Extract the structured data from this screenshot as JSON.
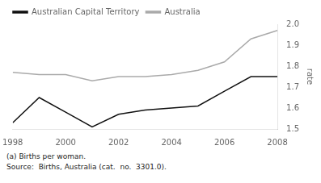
{
  "chart_data": {
    "type": "line",
    "x": [
      1998,
      1999,
      2000,
      2001,
      2002,
      2003,
      2004,
      2005,
      2006,
      2007,
      2008
    ],
    "series": [
      {
        "name": "Australian Capital Territory",
        "color": "#111111",
        "values": [
          1.53,
          1.65,
          1.58,
          1.51,
          1.57,
          1.59,
          1.6,
          1.61,
          1.68,
          1.75,
          1.75
        ]
      },
      {
        "name": "Australia",
        "color": "#aaaaaa",
        "values": [
          1.77,
          1.76,
          1.76,
          1.73,
          1.75,
          1.75,
          1.76,
          1.78,
          1.82,
          1.93,
          1.97
        ]
      }
    ],
    "xlim": [
      1998,
      2008
    ],
    "xticks": [
      1998,
      2000,
      2002,
      2004,
      2006,
      2008
    ],
    "ylim": [
      1.5,
      2.0
    ],
    "yticks": [
      1.5,
      1.6,
      1.7,
      1.8,
      1.9,
      {
        "value": 2.0,
        "label": "2.0"
      }
    ],
    "ylabel": "rate",
    "annotations": [
      "(a) Births per woman.",
      "Source:  Births, Australia (cat.  no.  3301.0)."
    ],
    "legend": "top-left",
    "grid": false
  }
}
